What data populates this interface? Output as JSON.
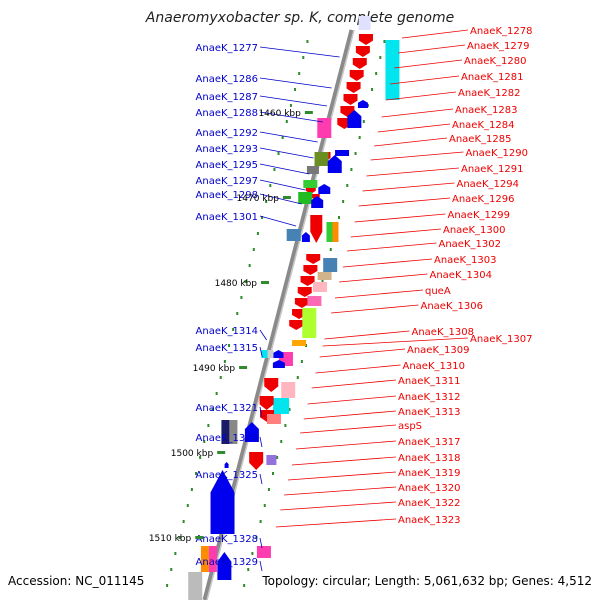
{
  "title": "Anaeromyxobacter sp. K, complete genome",
  "accession": "Accession: NC_011145",
  "topology": "Topology: circular; Length: 5,061,632 bp; Genes: 4,512",
  "colors": {
    "axis": "#808080",
    "left_label": "#0000cc",
    "right_label": "#ee0000",
    "tick": "#2e8b2e",
    "forward_gene": "#0000ee",
    "reverse_gene": "#ee0000"
  },
  "kbp_ticks": [
    "1460 kbp",
    "1470 kbp",
    "1480 kbp",
    "1490 kbp",
    "1500 kbp",
    "1510 kbp"
  ],
  "left_genes": [
    "AnaeK_1277",
    "AnaeK_1286",
    "AnaeK_1287",
    "AnaeK_1288",
    "AnaeK_1292",
    "AnaeK_1293",
    "AnaeK_1295",
    "AnaeK_1297",
    "AnaeK_1298",
    "AnaeK_1301",
    "AnaeK_1314",
    "AnaeK_1315",
    "AnaeK_1321",
    "AnaeK_1324",
    "AnaeK_1325",
    "AnaeK_1328",
    "AnaeK_1329"
  ],
  "right_genes": [
    "AnaeK_1278",
    "AnaeK_1279",
    "AnaeK_1280",
    "AnaeK_1281",
    "AnaeK_1282",
    "AnaeK_1283",
    "AnaeK_1284",
    "AnaeK_1285",
    "AnaeK_1290",
    "AnaeK_1291",
    "AnaeK_1294",
    "AnaeK_1296",
    "AnaeK_1299",
    "AnaeK_1300",
    "AnaeK_1302",
    "AnaeK_1303",
    "AnaeK_1304",
    "queA",
    "AnaeK_1306",
    "AnaeK_1307",
    "AnaeK_1308",
    "AnaeK_1309",
    "AnaeK_1310",
    "AnaeK_1311",
    "AnaeK_1312",
    "AnaeK_1313",
    "aspS",
    "AnaeK_1317",
    "AnaeK_1318",
    "AnaeK_1319",
    "AnaeK_1320",
    "AnaeK_1322",
    "AnaeK_1323"
  ]
}
